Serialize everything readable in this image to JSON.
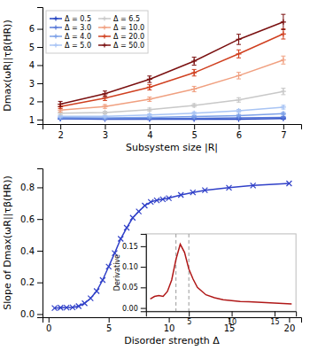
{
  "chart_data": [
    {
      "type": "line",
      "x": [
        2,
        3,
        4,
        5,
        6,
        7
      ],
      "xlabel": "Subsystem size |R|",
      "ylabel": "Dmax(ωR||τβ(HR))",
      "xlim": [
        1.6,
        7.4
      ],
      "ylim": [
        0.75,
        7.2
      ],
      "xticks": [
        2,
        3,
        4,
        5,
        6,
        7
      ],
      "yticks": [
        1,
        2,
        3,
        4,
        5,
        6
      ],
      "legend": "upper left",
      "marker": "plus",
      "series": [
        {
          "name": "Δ = 0.5",
          "color": "#2040c0",
          "values": [
            1.04,
            1.02,
            1.02,
            1.02,
            1.02,
            1.05
          ],
          "errors": [
            0.03,
            0.02,
            0.02,
            0.02,
            0.02,
            0.03
          ]
        },
        {
          "name": "Δ = 3.0",
          "color": "#5878d8",
          "values": [
            1.06,
            1.05,
            1.06,
            1.07,
            1.09,
            1.12
          ],
          "errors": [
            0.03,
            0.03,
            0.03,
            0.03,
            0.04,
            0.05
          ]
        },
        {
          "name": "Δ = 4.0",
          "color": "#7ca0e8",
          "values": [
            1.1,
            1.09,
            1.12,
            1.16,
            1.22,
            1.32
          ],
          "errors": [
            0.04,
            0.04,
            0.04,
            0.05,
            0.06,
            0.07
          ]
        },
        {
          "name": "Δ = 5.0",
          "color": "#a8c4f4",
          "values": [
            1.18,
            1.18,
            1.25,
            1.35,
            1.48,
            1.68
          ],
          "errors": [
            0.05,
            0.05,
            0.06,
            0.07,
            0.08,
            0.1
          ]
        },
        {
          "name": "Δ = 6.5",
          "color": "#c8c8c8",
          "values": [
            1.35,
            1.38,
            1.55,
            1.78,
            2.08,
            2.55
          ],
          "errors": [
            0.08,
            0.07,
            0.08,
            0.09,
            0.12,
            0.18
          ]
        },
        {
          "name": "Δ = 10.0",
          "color": "#f0a080",
          "values": [
            1.52,
            1.72,
            2.12,
            2.68,
            3.42,
            4.28
          ],
          "errors": [
            0.1,
            0.1,
            0.12,
            0.15,
            0.18,
            0.22
          ]
        },
        {
          "name": "Δ = 20.0",
          "color": "#d04020",
          "values": [
            1.72,
            2.18,
            2.78,
            3.58,
            4.62,
            5.72
          ],
          "errors": [
            0.12,
            0.13,
            0.15,
            0.18,
            0.22,
            0.28
          ]
        },
        {
          "name": "Δ = 50.0",
          "color": "#7a1010",
          "values": [
            1.85,
            2.42,
            3.22,
            4.22,
            5.42,
            6.38
          ],
          "errors": [
            0.15,
            0.15,
            0.18,
            0.22,
            0.28,
            0.42
          ]
        }
      ]
    },
    {
      "type": "line",
      "x": [
        0.5,
        1.0,
        1.5,
        2.0,
        2.5,
        3.0,
        3.5,
        4.0,
        4.5,
        5.0,
        5.5,
        6.0,
        6.5,
        7.0,
        7.5,
        8.0,
        8.5,
        9.0,
        9.5,
        10.0,
        11.0,
        12.0,
        13.0,
        15.0,
        17.0,
        20.0
      ],
      "values": [
        0.038,
        0.04,
        0.041,
        0.042,
        0.05,
        0.068,
        0.1,
        0.145,
        0.215,
        0.3,
        0.385,
        0.475,
        0.545,
        0.608,
        0.648,
        0.685,
        0.708,
        0.718,
        0.725,
        0.732,
        0.752,
        0.768,
        0.782,
        0.798,
        0.812,
        0.825
      ],
      "color": "#3040c8",
      "marker": "cross",
      "xlabel": "Disorder strength Δ",
      "ylabel": "Slope of Dmax(ωR||τβ(HR))",
      "xlim": [
        -0.5,
        21
      ],
      "ylim": [
        -0.02,
        0.92
      ],
      "xticks": [
        0,
        5,
        10,
        15,
        20
      ],
      "yticks": [
        {
          "value": 0.0,
          "label": "0.0"
        },
        0.2,
        0.4,
        0.6,
        0.8
      ]
    },
    {
      "type": "line",
      "x": [
        0.5,
        1.0,
        1.5,
        2.0,
        2.5,
        3.0,
        3.5,
        4.0,
        4.5,
        5.0,
        5.5,
        6.0,
        7.0,
        8.0,
        9.0,
        10.0,
        11.0,
        12.0,
        13.0,
        14.0,
        15.0,
        16.0,
        17.0
      ],
      "values": [
        0.022,
        0.028,
        0.03,
        0.028,
        0.04,
        0.068,
        0.118,
        0.155,
        0.135,
        0.095,
        0.07,
        0.05,
        0.032,
        0.025,
        0.02,
        0.018,
        0.016,
        0.015,
        0.014,
        0.013,
        0.012,
        0.011,
        0.01
      ],
      "color": "#b01818",
      "vlines": [
        3.5,
        5.0
      ],
      "ylabel": "Derivative",
      "xlim": [
        0.0,
        17.5
      ],
      "ylim": [
        -0.008,
        0.18
      ],
      "xticks": [
        5,
        10,
        15
      ],
      "yticks": [
        {
          "value": 0.0,
          "label": "0.00"
        },
        0.05,
        {
          "value": 0.1,
          "label": "0.10"
        },
        0.15
      ]
    }
  ]
}
